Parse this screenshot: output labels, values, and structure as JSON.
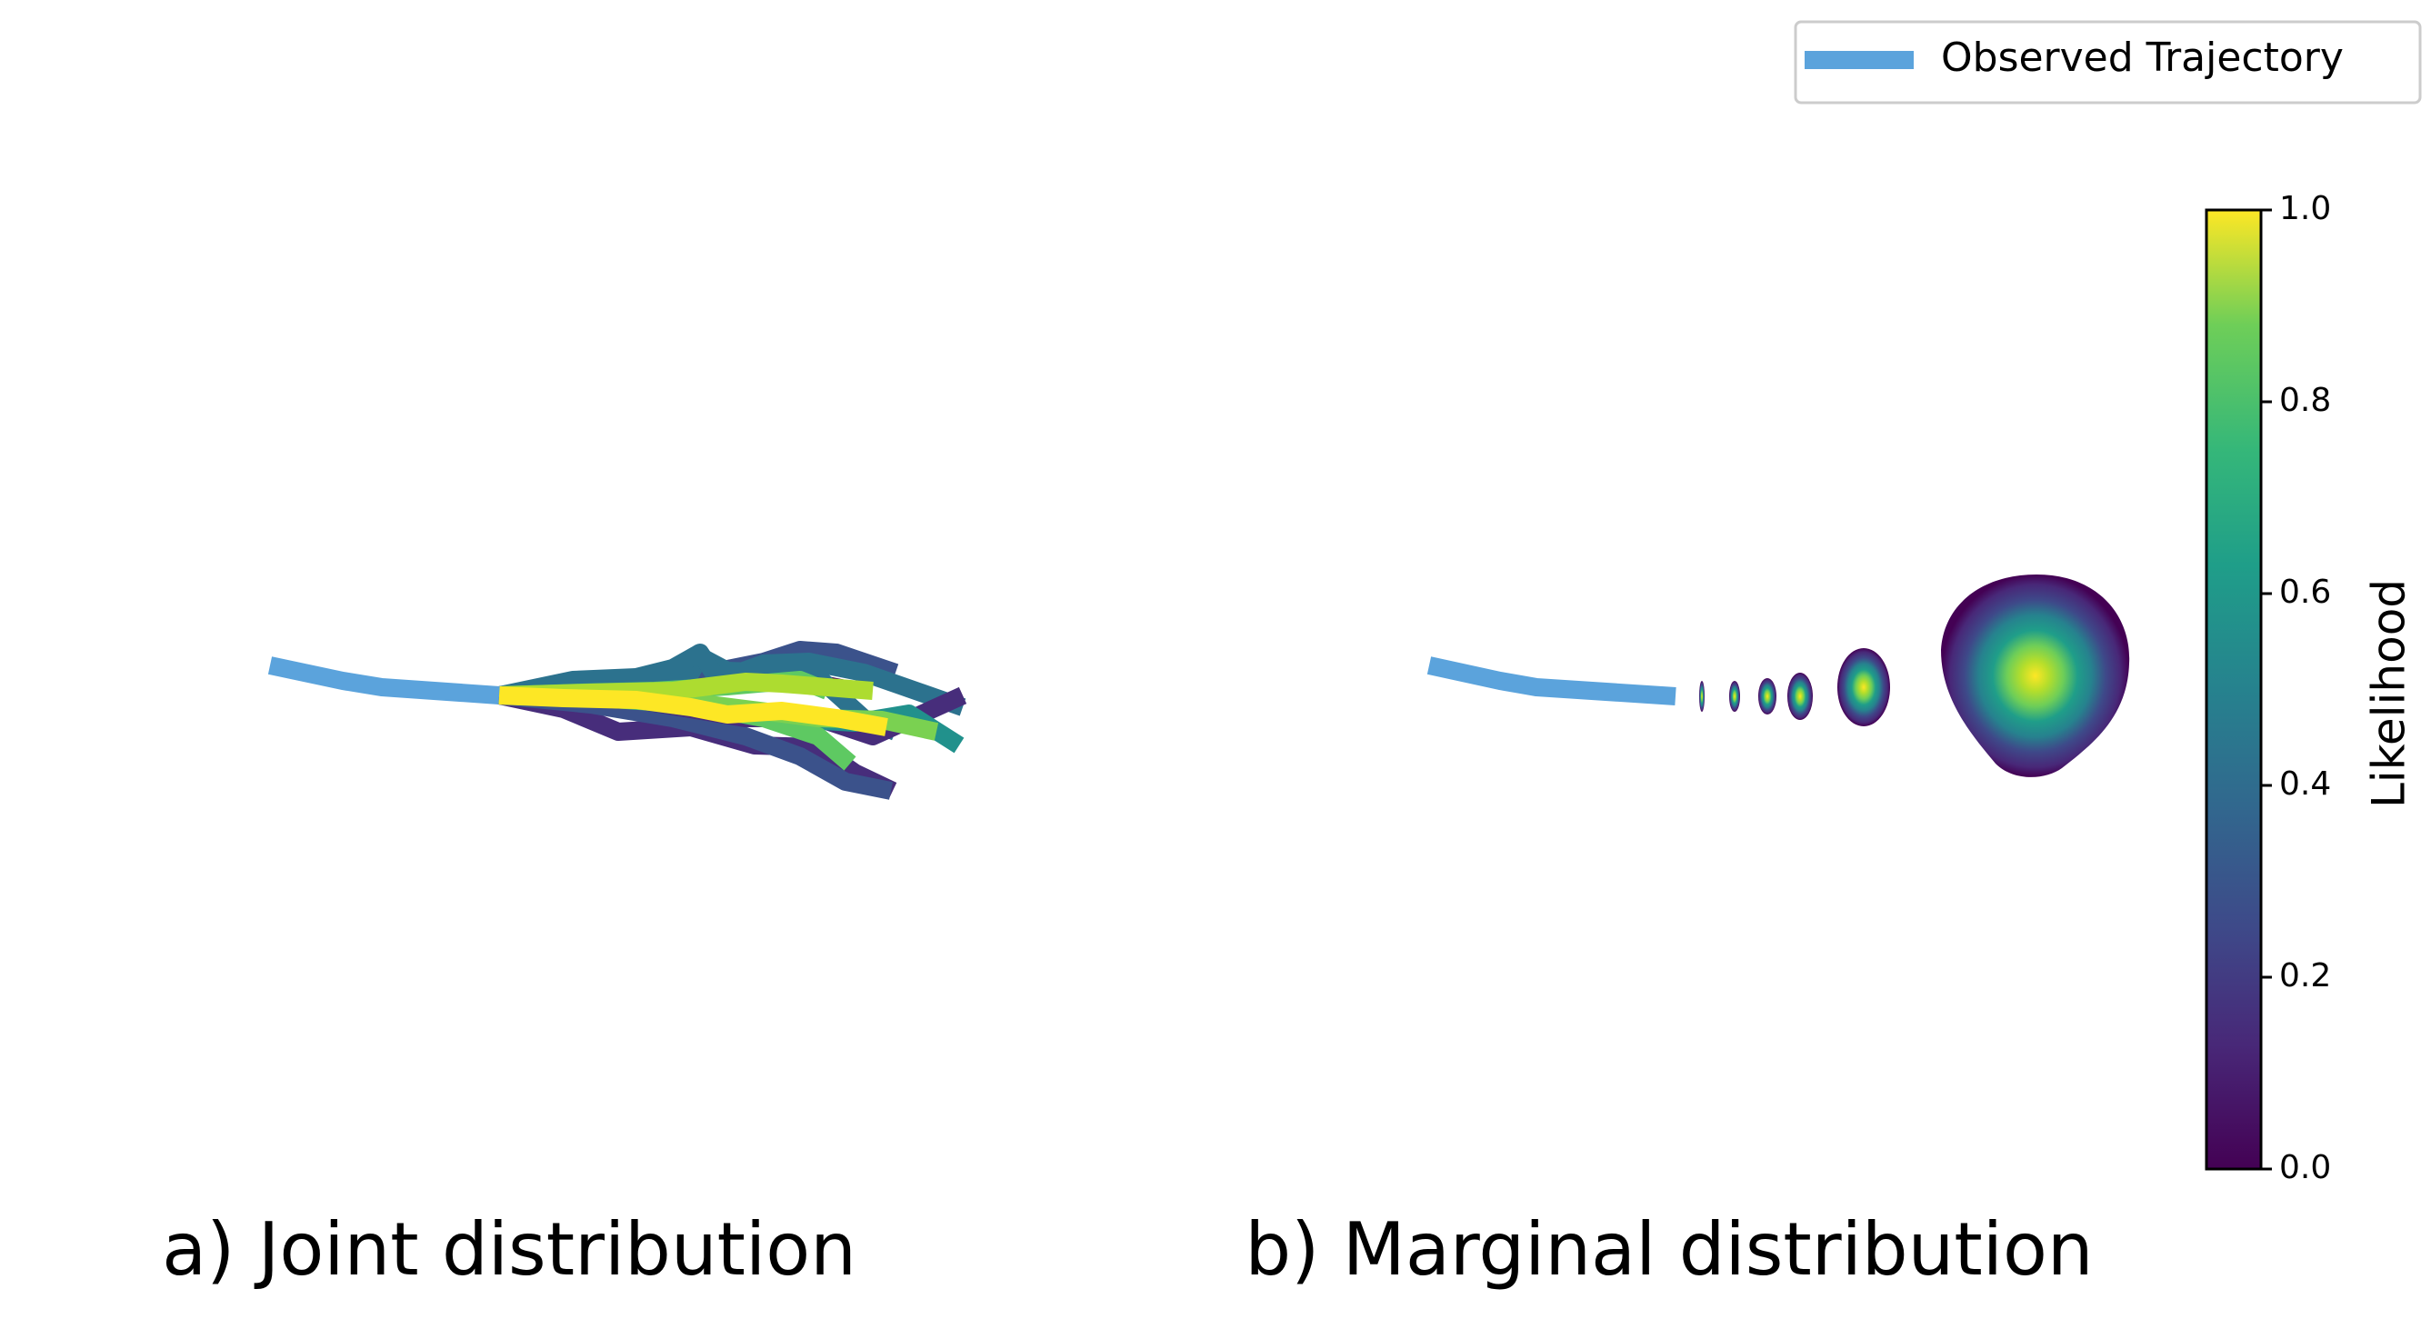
{
  "chart_data": {
    "type": "trajectory",
    "series": [
      {
        "name": "Observed Trajectory",
        "color": "#5ba3dc"
      }
    ],
    "panels": [
      "a) Joint distribution",
      "b) Marginal distribution"
    ],
    "colorbar": {
      "label": "Likelihood",
      "ylim": [
        0,
        1
      ],
      "yticks": [
        {
          "value": 0,
          "label": "0.0"
        },
        0.2,
        0.4,
        0.6,
        0.8,
        {
          "value": 1,
          "label": "1.0"
        }
      ]
    }
  }
}
